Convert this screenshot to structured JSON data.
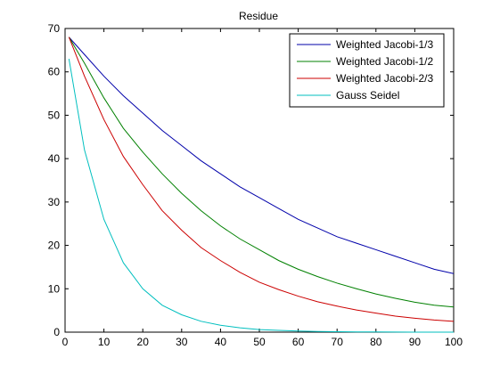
{
  "chart_data": {
    "type": "line",
    "title": "Residue",
    "xlabel": "",
    "ylabel": "",
    "xlim": [
      0,
      100
    ],
    "ylim": [
      0,
      70
    ],
    "xticks": [
      0,
      10,
      20,
      30,
      40,
      50,
      60,
      70,
      80,
      90,
      100
    ],
    "yticks": [
      0,
      10,
      20,
      30,
      40,
      50,
      60,
      70
    ],
    "grid": false,
    "legend_position": "top-right",
    "x": [
      1,
      5,
      10,
      15,
      20,
      25,
      30,
      35,
      40,
      45,
      50,
      55,
      60,
      65,
      70,
      75,
      80,
      85,
      90,
      95,
      100
    ],
    "series": [
      {
        "name": "Weighted Jacobi-1/3",
        "color": "#0000aa",
        "values": [
          68,
          64,
          59,
          54.5,
          50.5,
          46.5,
          43,
          39.5,
          36.5,
          33.5,
          31,
          28.5,
          26,
          24,
          22,
          20.5,
          19,
          17.5,
          16,
          14.5,
          13.5
        ]
      },
      {
        "name": "Weighted Jacobi-1/2",
        "color": "#008000",
        "values": [
          68,
          62,
          54,
          47,
          41.5,
          36.5,
          32,
          28,
          24.5,
          21.5,
          19,
          16.5,
          14.5,
          12.8,
          11.3,
          10,
          8.8,
          7.8,
          6.9,
          6.2,
          5.8
        ]
      },
      {
        "name": "Weighted Jacobi-2/3",
        "color": "#cc0000",
        "values": [
          68,
          59,
          49,
          40.5,
          34,
          28,
          23.5,
          19.5,
          16.5,
          13.8,
          11.5,
          9.8,
          8.3,
          7,
          6,
          5.1,
          4.4,
          3.7,
          3.2,
          2.8,
          2.5
        ]
      },
      {
        "name": "Gauss Seidel",
        "color": "#00bfbf",
        "values": [
          63,
          42,
          26,
          16,
          10,
          6.2,
          4,
          2.5,
          1.6,
          1.0,
          0.6,
          0.4,
          0.25,
          0.15,
          0.1,
          0.06,
          0.04,
          0.02,
          0.01,
          0.01,
          0
        ]
      }
    ]
  }
}
